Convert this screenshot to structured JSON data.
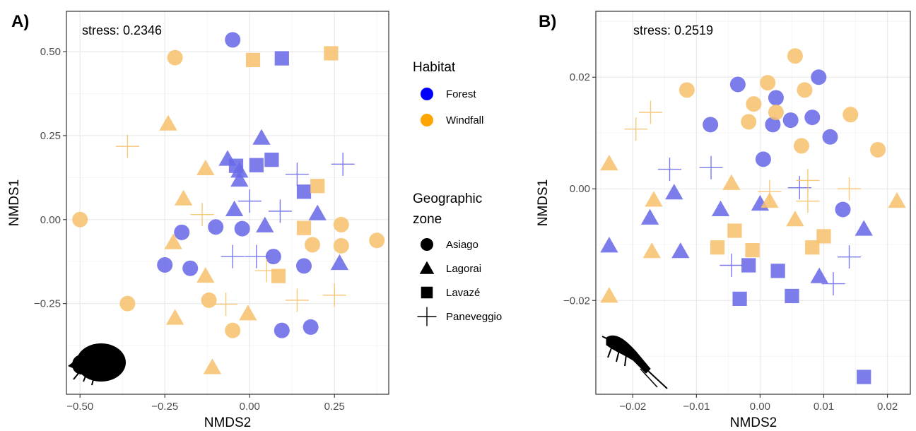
{
  "chart_data": [
    {
      "panel_label": "A)",
      "type": "scatter",
      "stress_label": "stress: 0.2346",
      "xlabel": "NMDS2",
      "ylabel": "NMDS1",
      "xlim": [
        -0.54,
        0.41
      ],
      "ylim": [
        -0.52,
        0.62
      ],
      "xticks": [
        -0.5,
        -0.25,
        0.0,
        0.25
      ],
      "xtick_labels": [
        "−0.50",
        "−0.25",
        "0.00",
        "0.25"
      ],
      "yticks": [
        -0.25,
        0.0,
        0.25,
        0.5
      ],
      "ytick_labels": [
        "−0.25",
        "0.00",
        "0.25",
        "0.50"
      ],
      "grid": true,
      "icon": "beetle-silhouette-icon",
      "points": [
        {
          "x": -0.05,
          "y": 0.535,
          "habitat": "Forest",
          "zone": "Asiago"
        },
        {
          "x": -0.2,
          "y": -0.038,
          "habitat": "Forest",
          "zone": "Asiago"
        },
        {
          "x": -0.1,
          "y": -0.022,
          "habitat": "Forest",
          "zone": "Asiago"
        },
        {
          "x": -0.022,
          "y": -0.027,
          "habitat": "Forest",
          "zone": "Asiago"
        },
        {
          "x": 0.07,
          "y": -0.11,
          "habitat": "Forest",
          "zone": "Asiago"
        },
        {
          "x": -0.25,
          "y": -0.135,
          "habitat": "Forest",
          "zone": "Asiago"
        },
        {
          "x": -0.175,
          "y": -0.145,
          "habitat": "Forest",
          "zone": "Asiago"
        },
        {
          "x": 0.16,
          "y": -0.138,
          "habitat": "Forest",
          "zone": "Asiago"
        },
        {
          "x": 0.095,
          "y": -0.33,
          "habitat": "Forest",
          "zone": "Asiago"
        },
        {
          "x": 0.18,
          "y": -0.32,
          "habitat": "Forest",
          "zone": "Asiago"
        },
        {
          "x": 0.035,
          "y": 0.243,
          "habitat": "Forest",
          "zone": "Lagorai"
        },
        {
          "x": -0.065,
          "y": 0.18,
          "habitat": "Forest",
          "zone": "Lagorai"
        },
        {
          "x": -0.03,
          "y": 0.145,
          "habitat": "Forest",
          "zone": "Lagorai"
        },
        {
          "x": -0.03,
          "y": 0.118,
          "habitat": "Forest",
          "zone": "Lagorai"
        },
        {
          "x": -0.045,
          "y": 0.03,
          "habitat": "Forest",
          "zone": "Lagorai"
        },
        {
          "x": 0.045,
          "y": -0.018,
          "habitat": "Forest",
          "zone": "Lagorai"
        },
        {
          "x": 0.2,
          "y": 0.018,
          "habitat": "Forest",
          "zone": "Lagorai"
        },
        {
          "x": 0.265,
          "y": -0.13,
          "habitat": "Forest",
          "zone": "Lagorai"
        },
        {
          "x": 0.095,
          "y": 0.48,
          "habitat": "Forest",
          "zone": "Lavazé"
        },
        {
          "x": 0.065,
          "y": 0.178,
          "habitat": "Forest",
          "zone": "Lavazé"
        },
        {
          "x": 0.02,
          "y": 0.162,
          "habitat": "Forest",
          "zone": "Lavazé"
        },
        {
          "x": -0.04,
          "y": 0.16,
          "habitat": "Forest",
          "zone": "Lavazé"
        },
        {
          "x": 0.16,
          "y": 0.083,
          "habitat": "Forest",
          "zone": "Lavazé"
        },
        {
          "x": 0.275,
          "y": 0.165,
          "habitat": "Forest",
          "zone": "Paneveggio"
        },
        {
          "x": 0.14,
          "y": 0.135,
          "habitat": "Forest",
          "zone": "Paneveggio"
        },
        {
          "x": 0.0,
          "y": 0.055,
          "habitat": "Forest",
          "zone": "Paneveggio"
        },
        {
          "x": 0.09,
          "y": 0.025,
          "habitat": "Forest",
          "zone": "Paneveggio"
        },
        {
          "x": -0.05,
          "y": -0.11,
          "habitat": "Forest",
          "zone": "Paneveggio"
        },
        {
          "x": 0.02,
          "y": -0.11,
          "habitat": "Forest",
          "zone": "Paneveggio"
        },
        {
          "x": -0.22,
          "y": 0.482,
          "habitat": "Windfall",
          "zone": "Asiago"
        },
        {
          "x": -0.5,
          "y": 0.0,
          "habitat": "Windfall",
          "zone": "Asiago"
        },
        {
          "x": 0.27,
          "y": -0.015,
          "habitat": "Windfall",
          "zone": "Asiago"
        },
        {
          "x": 0.185,
          "y": -0.075,
          "habitat": "Windfall",
          "zone": "Asiago"
        },
        {
          "x": 0.27,
          "y": -0.078,
          "habitat": "Windfall",
          "zone": "Asiago"
        },
        {
          "x": 0.375,
          "y": -0.062,
          "habitat": "Windfall",
          "zone": "Asiago"
        },
        {
          "x": -0.36,
          "y": -0.25,
          "habitat": "Windfall",
          "zone": "Asiago"
        },
        {
          "x": -0.12,
          "y": -0.24,
          "habitat": "Windfall",
          "zone": "Asiago"
        },
        {
          "x": -0.05,
          "y": -0.33,
          "habitat": "Windfall",
          "zone": "Asiago"
        },
        {
          "x": -0.24,
          "y": 0.285,
          "habitat": "Windfall",
          "zone": "Lagorai"
        },
        {
          "x": -0.13,
          "y": 0.152,
          "habitat": "Windfall",
          "zone": "Lagorai"
        },
        {
          "x": -0.195,
          "y": 0.062,
          "habitat": "Windfall",
          "zone": "Lagorai"
        },
        {
          "x": -0.225,
          "y": -0.068,
          "habitat": "Windfall",
          "zone": "Lagorai"
        },
        {
          "x": -0.13,
          "y": -0.168,
          "habitat": "Windfall",
          "zone": "Lagorai"
        },
        {
          "x": -0.22,
          "y": -0.293,
          "habitat": "Windfall",
          "zone": "Lagorai"
        },
        {
          "x": -0.005,
          "y": -0.28,
          "habitat": "Windfall",
          "zone": "Lagorai"
        },
        {
          "x": -0.11,
          "y": -0.44,
          "habitat": "Windfall",
          "zone": "Lagorai"
        },
        {
          "x": 0.01,
          "y": 0.475,
          "habitat": "Windfall",
          "zone": "Lavazé"
        },
        {
          "x": 0.24,
          "y": 0.495,
          "habitat": "Windfall",
          "zone": "Lavazé"
        },
        {
          "x": 0.2,
          "y": 0.1,
          "habitat": "Windfall",
          "zone": "Lavazé"
        },
        {
          "x": 0.16,
          "y": -0.025,
          "habitat": "Windfall",
          "zone": "Lavazé"
        },
        {
          "x": 0.085,
          "y": -0.168,
          "habitat": "Windfall",
          "zone": "Lavazé"
        },
        {
          "x": -0.36,
          "y": 0.218,
          "habitat": "Windfall",
          "zone": "Paneveggio"
        },
        {
          "x": -0.14,
          "y": 0.015,
          "habitat": "Windfall",
          "zone": "Paneveggio"
        },
        {
          "x": 0.05,
          "y": -0.152,
          "habitat": "Windfall",
          "zone": "Paneveggio"
        },
        {
          "x": -0.07,
          "y": -0.252,
          "habitat": "Windfall",
          "zone": "Paneveggio"
        },
        {
          "x": 0.14,
          "y": -0.24,
          "habitat": "Windfall",
          "zone": "Paneveggio"
        },
        {
          "x": 0.25,
          "y": -0.225,
          "habitat": "Windfall",
          "zone": "Paneveggio"
        }
      ]
    },
    {
      "panel_label": "B)",
      "type": "scatter",
      "stress_label": "stress: 0.2519",
      "xlabel": "NMDS2",
      "ylabel": "NMDS1",
      "xlim": [
        -0.0258,
        0.0236
      ],
      "ylim": [
        -0.0368,
        0.0318
      ],
      "xticks": [
        -0.02,
        -0.01,
        0.0,
        0.01,
        0.02
      ],
      "xtick_labels": [
        "−0.02",
        "−0.01",
        "0.00",
        "0.01",
        "0.02"
      ],
      "yticks": [
        -0.02,
        0.0,
        0.02
      ],
      "ytick_labels": [
        "−0.02",
        "0.00",
        "0.02"
      ],
      "grid": true,
      "icon": "springtail-silhouette-icon",
      "points": [
        {
          "x": 0.0092,
          "y": 0.02,
          "habitat": "Forest",
          "zone": "Asiago"
        },
        {
          "x": -0.0035,
          "y": 0.0187,
          "habitat": "Forest",
          "zone": "Asiago"
        },
        {
          "x": 0.0025,
          "y": 0.0163,
          "habitat": "Forest",
          "zone": "Asiago"
        },
        {
          "x": -0.0078,
          "y": 0.0115,
          "habitat": "Forest",
          "zone": "Asiago"
        },
        {
          "x": 0.002,
          "y": 0.0115,
          "habitat": "Forest",
          "zone": "Asiago"
        },
        {
          "x": 0.0048,
          "y": 0.0123,
          "habitat": "Forest",
          "zone": "Asiago"
        },
        {
          "x": 0.0082,
          "y": 0.0128,
          "habitat": "Forest",
          "zone": "Asiago"
        },
        {
          "x": 0.011,
          "y": 0.0093,
          "habitat": "Forest",
          "zone": "Asiago"
        },
        {
          "x": 0.0005,
          "y": 0.0053,
          "habitat": "Forest",
          "zone": "Asiago"
        },
        {
          "x": 0.013,
          "y": -0.0037,
          "habitat": "Forest",
          "zone": "Asiago"
        },
        {
          "x": -0.0135,
          "y": -0.0007,
          "habitat": "Forest",
          "zone": "Lagorai"
        },
        {
          "x": -0.0062,
          "y": -0.0037,
          "habitat": "Forest",
          "zone": "Lagorai"
        },
        {
          "x": -0.0173,
          "y": -0.0052,
          "habitat": "Forest",
          "zone": "Lagorai"
        },
        {
          "x": 0.0,
          "y": -0.0027,
          "habitat": "Forest",
          "zone": "Lagorai"
        },
        {
          "x": -0.0237,
          "y": -0.0102,
          "habitat": "Forest",
          "zone": "Lagorai"
        },
        {
          "x": -0.0125,
          "y": -0.0112,
          "habitat": "Forest",
          "zone": "Lagorai"
        },
        {
          "x": 0.0163,
          "y": -0.0072,
          "habitat": "Forest",
          "zone": "Lagorai"
        },
        {
          "x": 0.0093,
          "y": -0.0157,
          "habitat": "Forest",
          "zone": "Lagorai"
        },
        {
          "x": -0.0018,
          "y": -0.0137,
          "habitat": "Forest",
          "zone": "Lavazé"
        },
        {
          "x": 0.0028,
          "y": -0.0147,
          "habitat": "Forest",
          "zone": "Lavazé"
        },
        {
          "x": -0.0032,
          "y": -0.0197,
          "habitat": "Forest",
          "zone": "Lavazé"
        },
        {
          "x": 0.005,
          "y": -0.0192,
          "habitat": "Forest",
          "zone": "Lavazé"
        },
        {
          "x": 0.0163,
          "y": -0.0337,
          "habitat": "Forest",
          "zone": "Lavazé"
        },
        {
          "x": -0.0142,
          "y": 0.0035,
          "habitat": "Forest",
          "zone": "Paneveggio"
        },
        {
          "x": -0.0077,
          "y": 0.0038,
          "habitat": "Forest",
          "zone": "Paneveggio"
        },
        {
          "x": 0.0062,
          "y": 0.0002,
          "habitat": "Forest",
          "zone": "Paneveggio"
        },
        {
          "x": -0.0045,
          "y": -0.0137,
          "habitat": "Forest",
          "zone": "Paneveggio"
        },
        {
          "x": 0.014,
          "y": -0.0122,
          "habitat": "Forest",
          "zone": "Paneveggio"
        },
        {
          "x": 0.0115,
          "y": -0.017,
          "habitat": "Forest",
          "zone": "Paneveggio"
        },
        {
          "x": 0.0055,
          "y": 0.0238,
          "habitat": "Windfall",
          "zone": "Asiago"
        },
        {
          "x": -0.0115,
          "y": 0.0177,
          "habitat": "Windfall",
          "zone": "Asiago"
        },
        {
          "x": 0.0012,
          "y": 0.019,
          "habitat": "Windfall",
          "zone": "Asiago"
        },
        {
          "x": 0.007,
          "y": 0.0177,
          "habitat": "Windfall",
          "zone": "Asiago"
        },
        {
          "x": -0.001,
          "y": 0.0152,
          "habitat": "Windfall",
          "zone": "Asiago"
        },
        {
          "x": 0.0025,
          "y": 0.0137,
          "habitat": "Windfall",
          "zone": "Asiago"
        },
        {
          "x": 0.0142,
          "y": 0.0133,
          "habitat": "Windfall",
          "zone": "Asiago"
        },
        {
          "x": -0.0018,
          "y": 0.012,
          "habitat": "Windfall",
          "zone": "Asiago"
        },
        {
          "x": 0.0065,
          "y": 0.0077,
          "habitat": "Windfall",
          "zone": "Asiago"
        },
        {
          "x": 0.0185,
          "y": 0.007,
          "habitat": "Windfall",
          "zone": "Asiago"
        },
        {
          "x": -0.0237,
          "y": 0.0045,
          "habitat": "Windfall",
          "zone": "Lagorai"
        },
        {
          "x": -0.0045,
          "y": 0.001,
          "habitat": "Windfall",
          "zone": "Lagorai"
        },
        {
          "x": -0.0167,
          "y": -0.002,
          "habitat": "Windfall",
          "zone": "Lagorai"
        },
        {
          "x": 0.0015,
          "y": -0.0022,
          "habitat": "Windfall",
          "zone": "Lagorai"
        },
        {
          "x": -0.017,
          "y": -0.0112,
          "habitat": "Windfall",
          "zone": "Lagorai"
        },
        {
          "x": 0.0055,
          "y": -0.0055,
          "habitat": "Windfall",
          "zone": "Lagorai"
        },
        {
          "x": 0.0215,
          "y": -0.0022,
          "habitat": "Windfall",
          "zone": "Lagorai"
        },
        {
          "x": -0.0237,
          "y": -0.0192,
          "habitat": "Windfall",
          "zone": "Lagorai"
        },
        {
          "x": -0.004,
          "y": -0.0075,
          "habitat": "Windfall",
          "zone": "Lavazé"
        },
        {
          "x": -0.0067,
          "y": -0.0105,
          "habitat": "Windfall",
          "zone": "Lavazé"
        },
        {
          "x": -0.0012,
          "y": -0.011,
          "habitat": "Windfall",
          "zone": "Lavazé"
        },
        {
          "x": 0.01,
          "y": -0.0085,
          "habitat": "Windfall",
          "zone": "Lavazé"
        },
        {
          "x": 0.0082,
          "y": -0.0105,
          "habitat": "Windfall",
          "zone": "Lavazé"
        },
        {
          "x": -0.0195,
          "y": 0.0107,
          "habitat": "Windfall",
          "zone": "Paneveggio"
        },
        {
          "x": -0.0172,
          "y": 0.0137,
          "habitat": "Windfall",
          "zone": "Paneveggio"
        },
        {
          "x": 0.0015,
          "y": -0.0005,
          "habitat": "Windfall",
          "zone": "Paneveggio"
        },
        {
          "x": 0.0075,
          "y": 0.0015,
          "habitat": "Windfall",
          "zone": "Paneveggio"
        },
        {
          "x": 0.0075,
          "y": -0.0022,
          "habitat": "Windfall",
          "zone": "Paneveggio"
        },
        {
          "x": 0.014,
          "y": 0.0,
          "habitat": "Windfall",
          "zone": "Paneveggio"
        }
      ]
    }
  ],
  "legend": {
    "habitat_title": "Habitat",
    "habitat_items": [
      {
        "label": "Forest",
        "color": "#0000ff"
      },
      {
        "label": "Windfall",
        "color": "#ffa500"
      }
    ],
    "zone_title_line1": "Geographic",
    "zone_title_line2": "zone",
    "zone_items": [
      {
        "label": "Asiago",
        "shape": "circle"
      },
      {
        "label": "Lagorai",
        "shape": "triangle"
      },
      {
        "label": "Lavazé",
        "shape": "square"
      },
      {
        "label": "Paneveggio",
        "shape": "plus"
      }
    ]
  },
  "colors": {
    "Forest": "#6a6ae8",
    "Windfall": "#f7c26e",
    "legend_key": "#000000",
    "panel_border": "#333333",
    "grid_major": "#ebebeb",
    "grid_minor": "#f5f5f5"
  }
}
